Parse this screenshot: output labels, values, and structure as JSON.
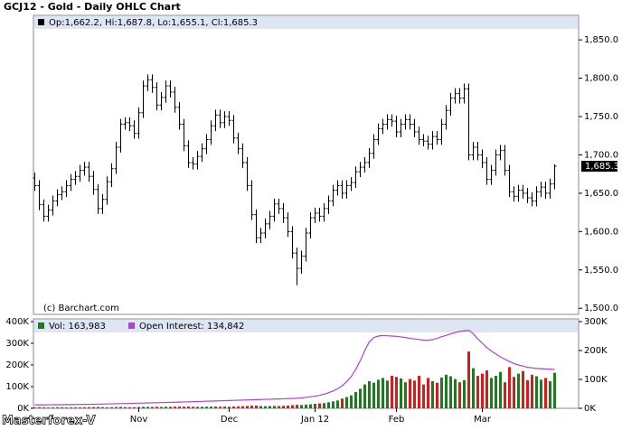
{
  "watermark": "Masterforex-V",
  "chart_data": [
    {
      "type": "ohlc",
      "title": "GCJ12 - Gold - Daily OHLC Chart",
      "legend": "Op:1,662.2, Hi:1,687.8, Lo:1,655.1, Cl:1,685.3",
      "last_price_label": "1,685.3",
      "source": "(c) Barchart.com",
      "color": "#000000",
      "ylim": [
        1492,
        1882
      ],
      "yticks": [
        {
          "value": 1500,
          "label": "1,500.0"
        },
        {
          "value": 1550,
          "label": "1,550.0"
        },
        {
          "value": 1600,
          "label": "1,600.0"
        },
        {
          "value": 1650,
          "label": "1,650.0"
        },
        {
          "value": 1700,
          "label": "1,700.0"
        },
        {
          "value": 1750,
          "label": "1,750.0"
        },
        {
          "value": 1800,
          "label": "1,800.0"
        },
        {
          "value": 1850,
          "label": "1,850.0"
        }
      ],
      "open": [
        1670,
        1660,
        1635,
        1620,
        1628,
        1640,
        1648,
        1652,
        1660,
        1668,
        1672,
        1680,
        1684,
        1672,
        1655,
        1630,
        1642,
        1665,
        1682,
        1710,
        1740,
        1742,
        1738,
        1728,
        1755,
        1790,
        1798,
        1788,
        1765,
        1775,
        1790,
        1782,
        1762,
        1740,
        1712,
        1690,
        1688,
        1698,
        1708,
        1720,
        1738,
        1752,
        1742,
        1750,
        1745,
        1722,
        1708,
        1690,
        1660,
        1622,
        1592,
        1598,
        1610,
        1620,
        1636,
        1630,
        1618,
        1600,
        1572,
        1552,
        1568,
        1598,
        1618,
        1624,
        1620,
        1630,
        1640,
        1654,
        1660,
        1650,
        1660,
        1664,
        1678,
        1684,
        1690,
        1702,
        1720,
        1734,
        1740,
        1746,
        1744,
        1730,
        1740,
        1746,
        1740,
        1730,
        1720,
        1718,
        1714,
        1724,
        1720,
        1740,
        1758,
        1774,
        1780,
        1774,
        1786,
        1700,
        1710,
        1700,
        1690,
        1668,
        1680,
        1700,
        1706,
        1680,
        1652,
        1646,
        1654,
        1650,
        1644,
        1640,
        1652,
        1658,
        1650,
        1662.2
      ],
      "high": [
        1677,
        1667,
        1642,
        1635,
        1647,
        1655,
        1659,
        1667,
        1675,
        1679,
        1687,
        1691,
        1691,
        1679,
        1662,
        1649,
        1672,
        1689,
        1717,
        1747,
        1749,
        1749,
        1745,
        1762,
        1797,
        1805,
        1805,
        1795,
        1782,
        1797,
        1797,
        1789,
        1769,
        1747,
        1719,
        1697,
        1705,
        1715,
        1727,
        1745,
        1759,
        1759,
        1757,
        1757,
        1752,
        1729,
        1715,
        1697,
        1667,
        1629,
        1605,
        1617,
        1627,
        1643,
        1643,
        1637,
        1625,
        1607,
        1579,
        1575,
        1605,
        1625,
        1631,
        1631,
        1637,
        1647,
        1661,
        1667,
        1667,
        1667,
        1671,
        1685,
        1691,
        1697,
        1709,
        1727,
        1741,
        1747,
        1753,
        1753,
        1751,
        1747,
        1753,
        1753,
        1747,
        1737,
        1727,
        1725,
        1731,
        1731,
        1747,
        1765,
        1781,
        1787,
        1787,
        1793,
        1793,
        1717,
        1717,
        1707,
        1697,
        1687,
        1707,
        1713,
        1713,
        1687,
        1659,
        1661,
        1661,
        1657,
        1651,
        1659,
        1665,
        1665,
        1669,
        1687.8
      ],
      "low": [
        1653,
        1628,
        1613,
        1613,
        1621,
        1633,
        1641,
        1645,
        1653,
        1661,
        1665,
        1673,
        1665,
        1648,
        1623,
        1623,
        1635,
        1658,
        1675,
        1703,
        1733,
        1731,
        1721,
        1721,
        1748,
        1783,
        1781,
        1758,
        1758,
        1768,
        1775,
        1755,
        1733,
        1705,
        1683,
        1681,
        1681,
        1691,
        1701,
        1713,
        1731,
        1735,
        1735,
        1738,
        1715,
        1701,
        1683,
        1653,
        1615,
        1585,
        1585,
        1591,
        1603,
        1613,
        1623,
        1611,
        1593,
        1565,
        1530,
        1545,
        1561,
        1591,
        1611,
        1613,
        1613,
        1623,
        1633,
        1647,
        1643,
        1643,
        1653,
        1657,
        1671,
        1677,
        1683,
        1695,
        1713,
        1727,
        1733,
        1737,
        1723,
        1723,
        1733,
        1733,
        1723,
        1713,
        1711,
        1707,
        1707,
        1713,
        1713,
        1733,
        1751,
        1767,
        1767,
        1767,
        1693,
        1693,
        1693,
        1683,
        1661,
        1661,
        1673,
        1693,
        1673,
        1645,
        1639,
        1639,
        1643,
        1637,
        1633,
        1633,
        1645,
        1643,
        1643,
        1655.1
      ],
      "close": [
        1660,
        1635,
        1620,
        1628,
        1640,
        1648,
        1652,
        1660,
        1668,
        1672,
        1680,
        1684,
        1672,
        1655,
        1630,
        1642,
        1665,
        1682,
        1710,
        1740,
        1742,
        1738,
        1728,
        1755,
        1790,
        1798,
        1788,
        1765,
        1775,
        1790,
        1782,
        1762,
        1740,
        1712,
        1690,
        1688,
        1698,
        1708,
        1720,
        1738,
        1752,
        1742,
        1750,
        1745,
        1722,
        1708,
        1690,
        1660,
        1622,
        1592,
        1598,
        1610,
        1620,
        1636,
        1630,
        1618,
        1600,
        1572,
        1552,
        1568,
        1598,
        1618,
        1624,
        1620,
        1630,
        1640,
        1654,
        1660,
        1650,
        1660,
        1664,
        1678,
        1684,
        1690,
        1702,
        1720,
        1734,
        1740,
        1746,
        1744,
        1730,
        1740,
        1746,
        1740,
        1730,
        1720,
        1718,
        1714,
        1724,
        1720,
        1740,
        1758,
        1774,
        1780,
        1774,
        1786,
        1700,
        1710,
        1700,
        1690,
        1668,
        1680,
        1700,
        1706,
        1680,
        1652,
        1646,
        1654,
        1650,
        1644,
        1640,
        1652,
        1658,
        1650,
        1662,
        1685.3
      ]
    },
    {
      "type": "volume",
      "categories": [
        null,
        null,
        null,
        null,
        null,
        null,
        null,
        null,
        null,
        null,
        null,
        null,
        null,
        null,
        null,
        null,
        null,
        null,
        null,
        null,
        null,
        null,
        null,
        "Nov",
        null,
        null,
        null,
        null,
        null,
        null,
        null,
        null,
        null,
        null,
        null,
        null,
        null,
        null,
        null,
        null,
        null,
        null,
        null,
        "Dec",
        null,
        null,
        null,
        null,
        null,
        null,
        null,
        null,
        null,
        null,
        null,
        null,
        null,
        null,
        null,
        null,
        null,
        null,
        "Jan 12",
        null,
        null,
        null,
        null,
        null,
        null,
        null,
        null,
        null,
        null,
        null,
        null,
        null,
        null,
        null,
        null,
        null,
        "Feb",
        null,
        null,
        null,
        null,
        null,
        null,
        null,
        null,
        null,
        null,
        null,
        null,
        null,
        null,
        null,
        null,
        null,
        null,
        "Mar",
        null,
        null,
        null,
        null,
        null,
        null,
        null,
        null,
        null,
        null,
        null,
        null,
        null,
        null,
        null,
        null
      ],
      "up_color": "#1f7a1f",
      "down_color": "#d91a1a",
      "ylim": [
        0,
        412500
      ],
      "yticks": [
        {
          "value": 0,
          "label": "0K"
        },
        {
          "value": 100000,
          "label": "100K"
        },
        {
          "value": 200000,
          "label": "200K"
        },
        {
          "value": 300000,
          "label": "300K"
        },
        {
          "value": 400000,
          "label": "400K"
        }
      ],
      "y2lim": [
        0,
        309375
      ],
      "y2ticks": [
        {
          "value": 0,
          "label": "0K"
        },
        {
          "value": 100000,
          "label": "100K"
        },
        {
          "value": 200000,
          "label": "200K"
        },
        {
          "value": 300000,
          "label": "300K"
        }
      ],
      "series": [
        {
          "name": "Vol: 163,983",
          "color": "#1f7a1f",
          "values": [
            4000,
            5000,
            4500,
            3800,
            4200,
            5100,
            4700,
            4000,
            3900,
            4400,
            4100,
            4600,
            5200,
            5800,
            6300,
            5400,
            4800,
            5200,
            6000,
            6600,
            5500,
            5200,
            5000,
            6200,
            7100,
            6800,
            6400,
            7000,
            6500,
            7200,
            6900,
            7600,
            8000,
            7400,
            8200,
            7000,
            6800,
            7100,
            7500,
            7800,
            8100,
            7400,
            7900,
            7200,
            8600,
            9000,
            9800,
            11000,
            12500,
            13000,
            10500,
            9800,
            10200,
            11000,
            10400,
            11500,
            13000,
            14500,
            16000,
            15200,
            17000,
            18500,
            21000,
            22500,
            24000,
            28000,
            32000,
            36000,
            45000,
            52000,
            60000,
            75000,
            90000,
            110000,
            125000,
            118000,
            132000,
            140000,
            128000,
            150000,
            145000,
            138000,
            120000,
            135000,
            128000,
            150000,
            110000,
            140000,
            125000,
            118000,
            142000,
            155000,
            148000,
            135000,
            120000,
            130000,
            262000,
            185000,
            150000,
            160000,
            175000,
            140000,
            150000,
            168000,
            120000,
            190000,
            145000,
            160000,
            172000,
            130000,
            155000,
            148000,
            132000,
            140000,
            125000,
            163983
          ]
        },
        {
          "name": "Open Interest: 134,842",
          "color": "#b040d0",
          "axis": "y2",
          "values": [
            12000,
            12100,
            12200,
            12300,
            12400,
            12500,
            12600,
            12800,
            13000,
            13200,
            13400,
            13600,
            13800,
            14000,
            14300,
            14600,
            15000,
            15400,
            15800,
            16200,
            16600,
            17000,
            17400,
            17800,
            18200,
            18600,
            19000,
            19400,
            19800,
            20200,
            20600,
            21000,
            21500,
            22000,
            22500,
            23000,
            23500,
            24000,
            24500,
            25000,
            25500,
            26000,
            26500,
            27000,
            27500,
            28000,
            28500,
            29000,
            29500,
            30000,
            30500,
            31000,
            31500,
            32000,
            32500,
            33000,
            33500,
            34000,
            35000,
            36000,
            38000,
            40000,
            42000,
            45000,
            49000,
            54000,
            60000,
            68000,
            78000,
            92000,
            110000,
            135000,
            165000,
            200000,
            230000,
            245000,
            250000,
            252000,
            251000,
            250000,
            249000,
            247000,
            245000,
            242000,
            240000,
            238000,
            236000,
            235000,
            238000,
            242000,
            248000,
            252000,
            258000,
            262000,
            266000,
            268000,
            270000,
            258000,
            240000,
            225000,
            210000,
            198000,
            188000,
            178000,
            170000,
            162000,
            155000,
            150000,
            146000,
            142000,
            140000,
            138000,
            137000,
            136000,
            135500,
            134842
          ]
        }
      ]
    }
  ]
}
